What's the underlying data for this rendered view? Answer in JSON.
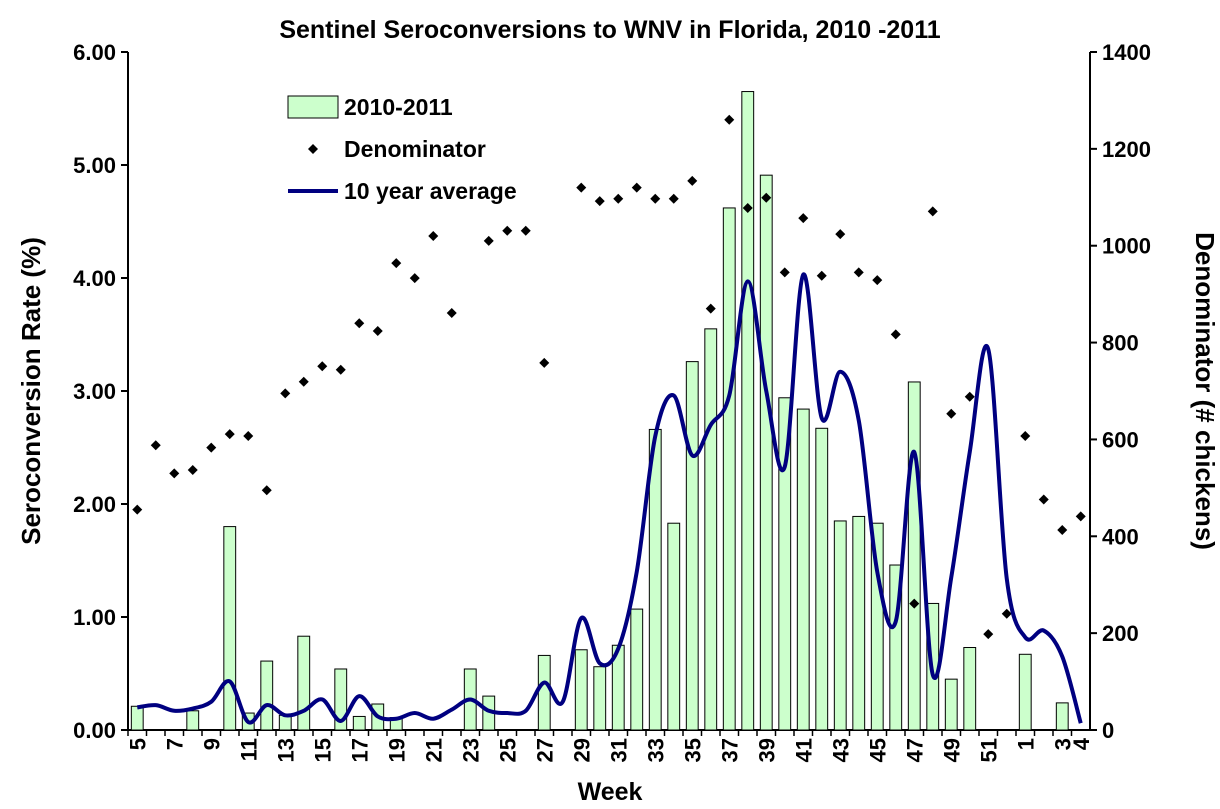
{
  "chart_data": {
    "type": "combo",
    "title": "Sentinel Seroconversions to WNV in Florida, 2010 -2011",
    "x_label": "Week",
    "y_label": "Seroconversion Rate (%)",
    "y2_label": "Denominator (# chickens)",
    "legend": "upper left",
    "categories": [
      "5",
      null,
      "7",
      null,
      "9",
      null,
      "11",
      null,
      "13",
      null,
      "15",
      null,
      "17",
      null,
      "19",
      null,
      "21",
      null,
      "23",
      null,
      "25",
      null,
      "27",
      null,
      "29",
      null,
      "31",
      null,
      "33",
      null,
      "35",
      null,
      "37",
      null,
      "39",
      null,
      "41",
      null,
      "43",
      null,
      "45",
      null,
      "47",
      null,
      "49",
      null,
      "51",
      null,
      "1",
      null,
      "3",
      "4"
    ],
    "ylim": [
      0,
      6
    ],
    "yticks": [
      {
        "value": 0,
        "label": "0.00"
      },
      {
        "value": 1,
        "label": "1.00"
      },
      {
        "value": 2,
        "label": "2.00"
      },
      {
        "value": 3,
        "label": "3.00"
      },
      {
        "value": 4,
        "label": "4.00"
      },
      {
        "value": 5,
        "label": "5.00"
      },
      {
        "value": 6,
        "label": "6.00"
      }
    ],
    "y2lim": [
      0,
      1400
    ],
    "y2ticks": [
      0,
      200,
      400,
      600,
      800,
      1000,
      1200,
      1400
    ],
    "series": [
      {
        "name": "2010-2011",
        "type": "bar",
        "color": "#ccffcc",
        "values": [
          0.21,
          0,
          0,
          0.17,
          0,
          1.8,
          0.15,
          0.61,
          0.13,
          0.83,
          0,
          0.54,
          0.12,
          0.23,
          0.11,
          0,
          0,
          0,
          0.54,
          0.3,
          0,
          0,
          0.66,
          0,
          0.71,
          0.56,
          0.75,
          1.07,
          2.66,
          1.83,
          3.26,
          3.55,
          4.62,
          5.65,
          4.91,
          2.94,
          2.84,
          2.67,
          1.85,
          1.89,
          1.83,
          1.46,
          3.08,
          1.12,
          0.45,
          0.73,
          0,
          0,
          0.67,
          0,
          0.24,
          0
        ]
      },
      {
        "name": "Denominator",
        "type": "scatter",
        "axis": "y2",
        "color": "#000000",
        "values": [
          455,
          588,
          530,
          537,
          583,
          611,
          607,
          495,
          695,
          719,
          751,
          744,
          840,
          824,
          964,
          933,
          1020,
          861,
          null,
          1010,
          1031,
          1031,
          758,
          null,
          1120,
          1092,
          1097,
          1120,
          1097,
          1097,
          1134,
          870,
          1260,
          1078,
          1099,
          945,
          1057,
          938,
          1024,
          945,
          929,
          817,
          261,
          1071,
          653,
          688,
          198,
          240,
          607,
          476,
          413,
          441
        ]
      },
      {
        "name": "10 year average",
        "type": "line",
        "color": "#000080",
        "values": [
          0.2,
          0.22,
          0.17,
          0.19,
          0.25,
          0.43,
          0.07,
          0.22,
          0.13,
          0.17,
          0.27,
          0.08,
          0.3,
          0.12,
          0.1,
          0.15,
          0.1,
          0.18,
          0.27,
          0.17,
          0.15,
          0.17,
          0.42,
          0.25,
          0.99,
          0.59,
          0.72,
          1.4,
          2.6,
          2.96,
          2.43,
          2.7,
          2.96,
          3.97,
          3.0,
          2.33,
          4.03,
          2.76,
          3.17,
          2.74,
          1.4,
          0.96,
          2.46,
          0.49,
          1.35,
          2.46,
          3.37,
          1.34,
          0.82,
          0.88,
          0.65,
          0.06
        ]
      }
    ]
  }
}
